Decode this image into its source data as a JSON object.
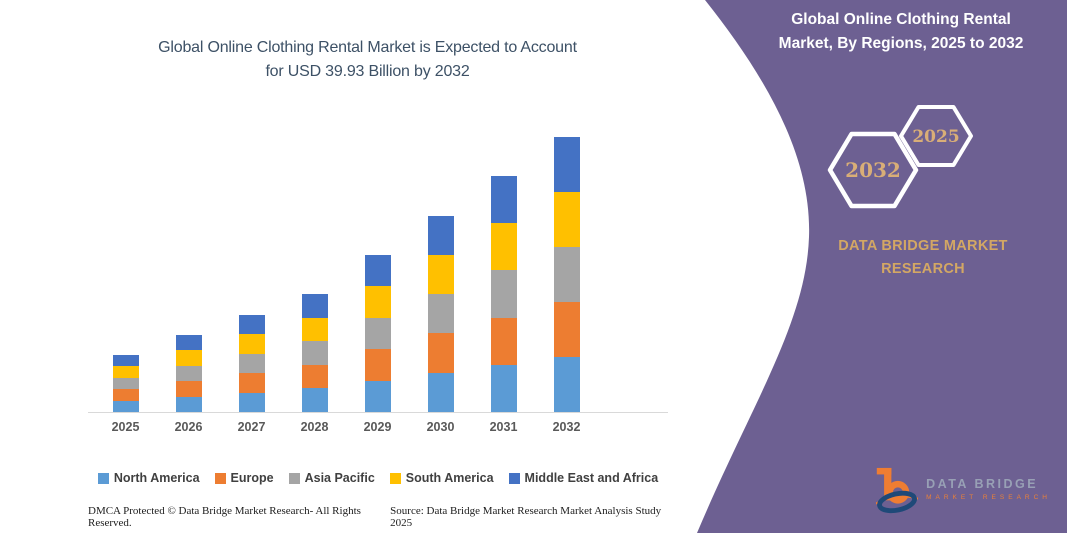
{
  "main_chart": {
    "title_line1": "Global Online Clothing Rental Market is Expected to Account",
    "title_line2": "for USD 39.93 Billion by 2032"
  },
  "chart_data": {
    "type": "bar",
    "stacked": true,
    "title": "Global Online Clothing Rental Market is Expected to Account for USD 39.93 Billion by 2032",
    "unit": "USD Billion",
    "categories": [
      "2025",
      "2026",
      "2027",
      "2028",
      "2029",
      "2030",
      "2031",
      "2032"
    ],
    "totals": [
      8.25,
      11.16,
      14.07,
      17.08,
      22.8,
      28.48,
      34.3,
      39.93
    ],
    "series": [
      {
        "name": "North America",
        "color": "#5b9bd5",
        "values": [
          1.65,
          2.23,
          2.81,
          3.42,
          4.56,
          5.7,
          6.86,
          7.99
        ]
      },
      {
        "name": "Europe",
        "color": "#ed7d31",
        "values": [
          1.65,
          2.23,
          2.81,
          3.42,
          4.56,
          5.7,
          6.86,
          7.99
        ]
      },
      {
        "name": "Asia Pacific",
        "color": "#a5a5a5",
        "values": [
          1.65,
          2.23,
          2.81,
          3.42,
          4.56,
          5.7,
          6.86,
          7.99
        ]
      },
      {
        "name": "South America",
        "color": "#ffc000",
        "values": [
          1.65,
          2.23,
          2.81,
          3.42,
          4.56,
          5.7,
          6.86,
          7.99
        ]
      },
      {
        "name": "Middle East and Africa",
        "color": "#4472c4",
        "values": [
          1.65,
          2.23,
          2.81,
          3.42,
          4.56,
          5.7,
          6.86,
          7.99
        ]
      }
    ],
    "xlabel": "",
    "ylabel": "",
    "ylim": [
      0,
      40
    ],
    "y_axis_visible": false,
    "grid": false,
    "legend_position": "bottom"
  },
  "side_panel": {
    "background": "#6d6092",
    "title_line1": "Global Online Clothing Rental",
    "title_line2": "Market, By Regions, 2025 to 2032",
    "hexagon_left_label": "2032",
    "hexagon_right_label": "2025",
    "brand_line1": "DATA BRIDGE MARKET",
    "brand_line2": "RESEARCH",
    "logo_line1": "DATA BRIDGE",
    "logo_line2": "MARKET RESEARCH"
  },
  "footer": {
    "left": "DMCA Protected © Data Bridge Market Research-  All Rights Reserved.",
    "right": "Source: Data Bridge Market Research  Market Analysis Study 2025"
  }
}
